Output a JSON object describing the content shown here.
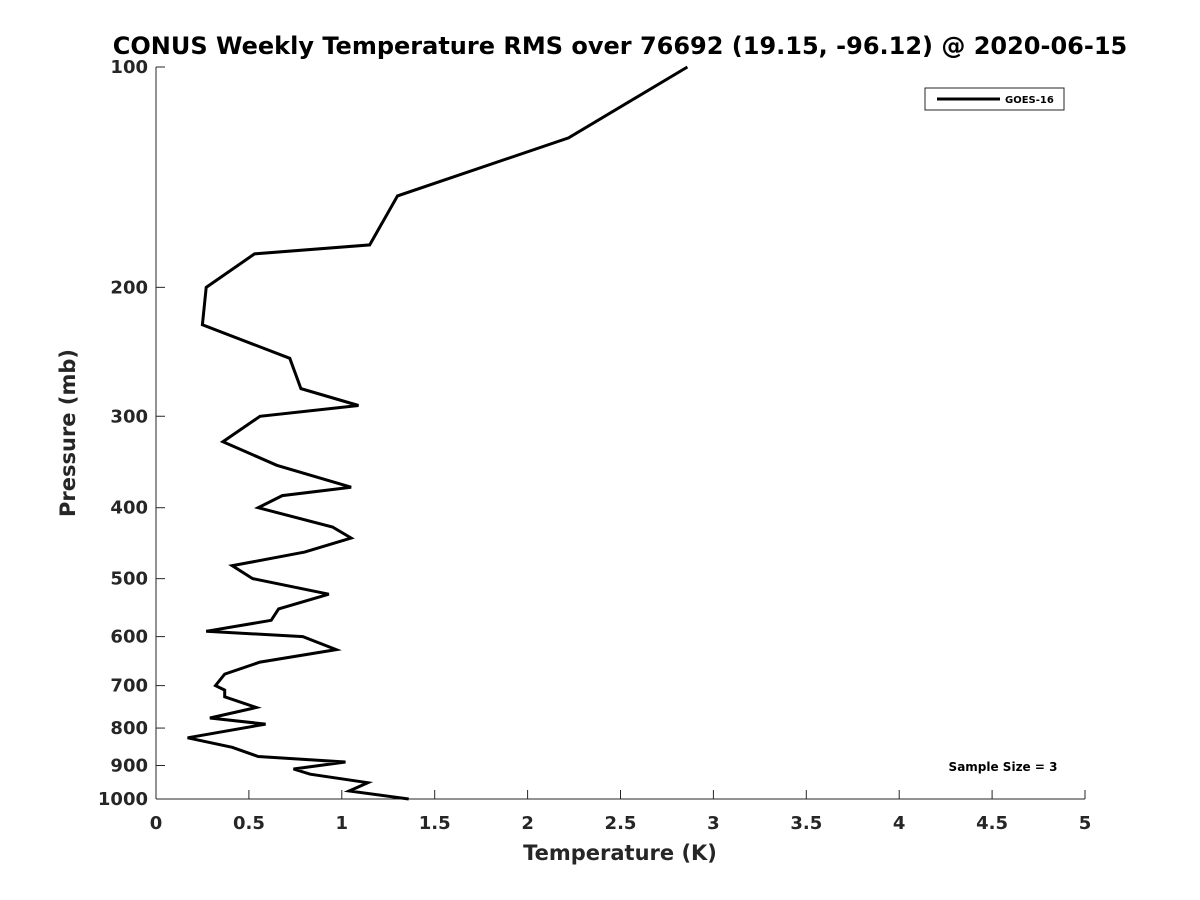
{
  "chart_data": {
    "type": "line",
    "title": "CONUS Weekly Temperature RMS over 76692 (19.15, -96.12) @ 2020-06-15",
    "xlabel": "Temperature (K)",
    "ylabel": "Pressure (mb)",
    "xlim": [
      0,
      5
    ],
    "ylim": [
      100,
      1000
    ],
    "y_scale": "log",
    "y_reversed": true,
    "x_ticks": [
      "0",
      "0.5",
      "1",
      "1.5",
      "2",
      "2.5",
      "3",
      "3.5",
      "4",
      "4.5",
      "5"
    ],
    "y_ticks": [
      "100",
      "200",
      "300",
      "400",
      "500",
      "600",
      "700",
      "800",
      "900",
      "1000"
    ],
    "grid": false,
    "legend_position": "top-right",
    "annotation": "Sample Size = 3",
    "series": [
      {
        "name": "GOES-16",
        "color": "#000000",
        "x": [
          2.86,
          2.22,
          1.3,
          1.15,
          0.53,
          0.27,
          0.25,
          0.72,
          0.78,
          1.09,
          0.56,
          0.36,
          0.65,
          1.05,
          0.68,
          0.55,
          0.95,
          1.05,
          0.8,
          0.41,
          0.52,
          0.93,
          0.66,
          0.62,
          0.27,
          0.79,
          0.97,
          0.56,
          0.37,
          0.32,
          0.37,
          0.37,
          0.54,
          0.29,
          0.59,
          0.17,
          0.41,
          0.55,
          1.02,
          0.74,
          0.83,
          1.14,
          1.04,
          1.36
        ],
        "y": [
          100,
          125,
          150,
          175,
          180,
          200,
          225,
          250,
          275,
          290,
          300,
          325,
          350,
          375,
          385,
          400,
          425,
          440,
          460,
          480,
          500,
          525,
          550,
          570,
          590,
          600,
          625,
          650,
          675,
          700,
          710,
          725,
          750,
          775,
          790,
          825,
          850,
          875,
          890,
          910,
          925,
          950,
          975,
          1000
        ]
      }
    ]
  }
}
